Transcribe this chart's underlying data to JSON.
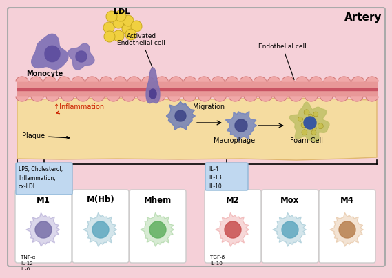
{
  "bg_color": "#f5d0d8",
  "fig_border": "#bbbbbb",
  "artery_band_color": "#e89898",
  "artery_line_color": "#c85060",
  "artery_bump_color": "#f0a8a8",
  "artery_bump_edge": "#c87070",
  "plaque_color": "#f5dca0",
  "plaque_edge": "#e0b870",
  "monocyte_color": "#8878b8",
  "monocyte_dark": "#6050a0",
  "ldl_color": "#f0d040",
  "ldl_edge": "#c8a820",
  "act_ec_color": "#8070b0",
  "act_ec_dark": "#504090",
  "migration_color": "#7080b8",
  "migration_dark": "#404888",
  "macrophage_color": "#7888c0",
  "macrophage_dark": "#404888",
  "foam_outer": "#b8b868",
  "foam_inner": "#3858a0",
  "foam_droplet": "#c8c050",
  "m1_outer": "#b8b0d8",
  "m1_inner": "#7870a8",
  "m_hb_outer": "#a8ccd8",
  "m_hb_inner": "#60a8c0",
  "mhem_outer": "#b0d8a8",
  "mhem_inner": "#60b060",
  "m2_outer": "#f0b0b0",
  "m2_inner": "#c85050",
  "mox_outer": "#a8ccd8",
  "mox_inner": "#60a8c0",
  "m4_outer": "#e8c8a8",
  "m4_inner": "#b88050",
  "stim_box_bg": "#c0d8f0",
  "stim_box_edge": "#90b8d8",
  "panel_bg": "#ffffff",
  "panel_edge": "#cccccc",
  "panel_labels": [
    "M1",
    "M(Hb)",
    "Mhem",
    "M2",
    "Mox",
    "M4"
  ],
  "m1_stimuli": "LPS, Cholesterol,\nInflammation,\nox-LDL",
  "m1_cytokines": "TNF-α\nIL-12\nIL-6",
  "m2_stimuli": "IL-4\nIL-13\nIL-10",
  "m2_cytokines": "TGF-β\nIL-10",
  "inflammation_text": "↑Inflammation",
  "migration_text": "Migration",
  "macrophage_text": "Macrophage",
  "foam_cell_text": "Foam Cell",
  "monocyte_text": "Monocyte",
  "ldl_text": "LDL",
  "activated_ec_text": "Activated\nEndothelial cell",
  "endothelial_cell_text": "Endothelial cell",
  "plaque_text": "Plaque",
  "artery_text": "Artery"
}
